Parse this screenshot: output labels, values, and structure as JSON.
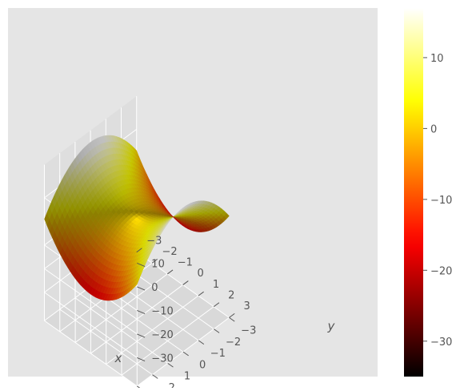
{
  "chart_data": {
    "type": "surface3d",
    "function": "z = 2*x^2 - 2*y^2 + 1",
    "x_range": [
      -3,
      3
    ],
    "y_range": [
      -3,
      3
    ],
    "z_range": [
      -35,
      17
    ],
    "xlabel": "x",
    "ylabel": "y",
    "zlabel": "",
    "x_ticks": [
      "−3",
      "−2",
      "−1",
      "0",
      "1",
      "2",
      "3"
    ],
    "y_ticks": [
      "−3",
      "−2",
      "−1",
      "0",
      "1",
      "2",
      "3"
    ],
    "z_ticks": [
      "10",
      "0",
      "−10",
      "−20",
      "−30"
    ],
    "colorbar_ticks": [
      "10",
      "0",
      "−10",
      "−20",
      "−30"
    ],
    "colormap": "hot",
    "style": "ggplot",
    "colors": {
      "pane": "#e5e5e5",
      "pane_dark": "#d9d9d9",
      "grid": "#ffffff",
      "tick_text": "#555555"
    },
    "grid": true
  }
}
